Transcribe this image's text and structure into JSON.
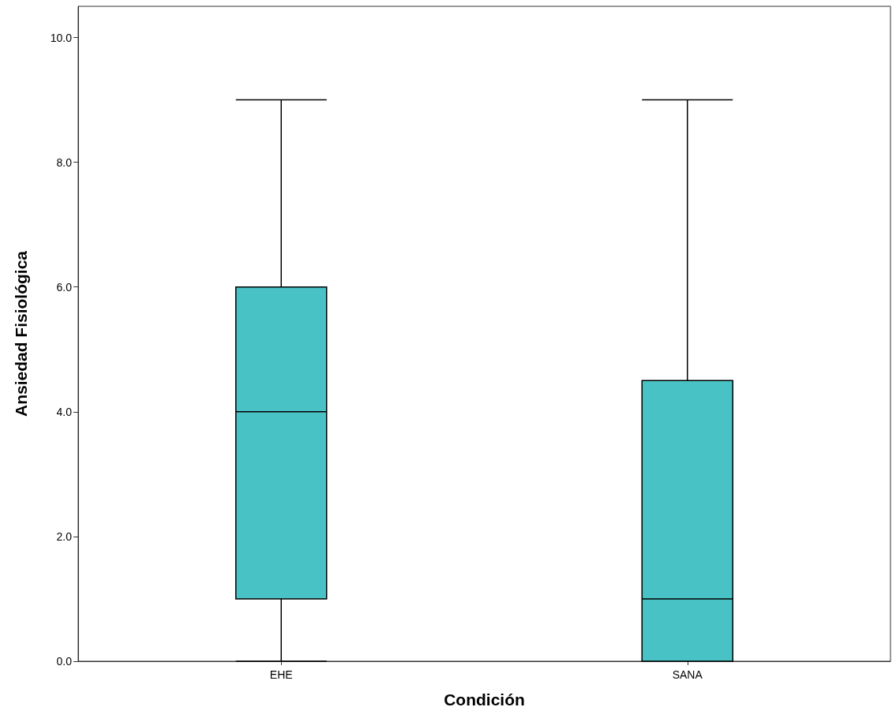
{
  "chart_data": {
    "type": "box",
    "xlabel": "Condición",
    "ylabel": "Ansiedad Fisiológica",
    "categories": [
      "EHE",
      "SANA"
    ],
    "boxes": [
      {
        "low": 0,
        "q1": 1,
        "median": 4,
        "q3": 6,
        "high": 9
      },
      {
        "low": 0,
        "q1": 0,
        "median": 1,
        "q3": 4.5,
        "high": 9
      }
    ],
    "color": "#48c2c5",
    "ylim": [
      0,
      10.5
    ],
    "yticks": [
      {
        "value": 0,
        "label": "0.0"
      },
      {
        "value": 2,
        "label": "2.0"
      },
      {
        "value": 4,
        "label": "4.0"
      },
      {
        "value": 6,
        "label": "6.0"
      },
      {
        "value": 8,
        "label": "8.0"
      },
      {
        "value": 10,
        "label": "10.0"
      }
    ],
    "grid": false
  }
}
